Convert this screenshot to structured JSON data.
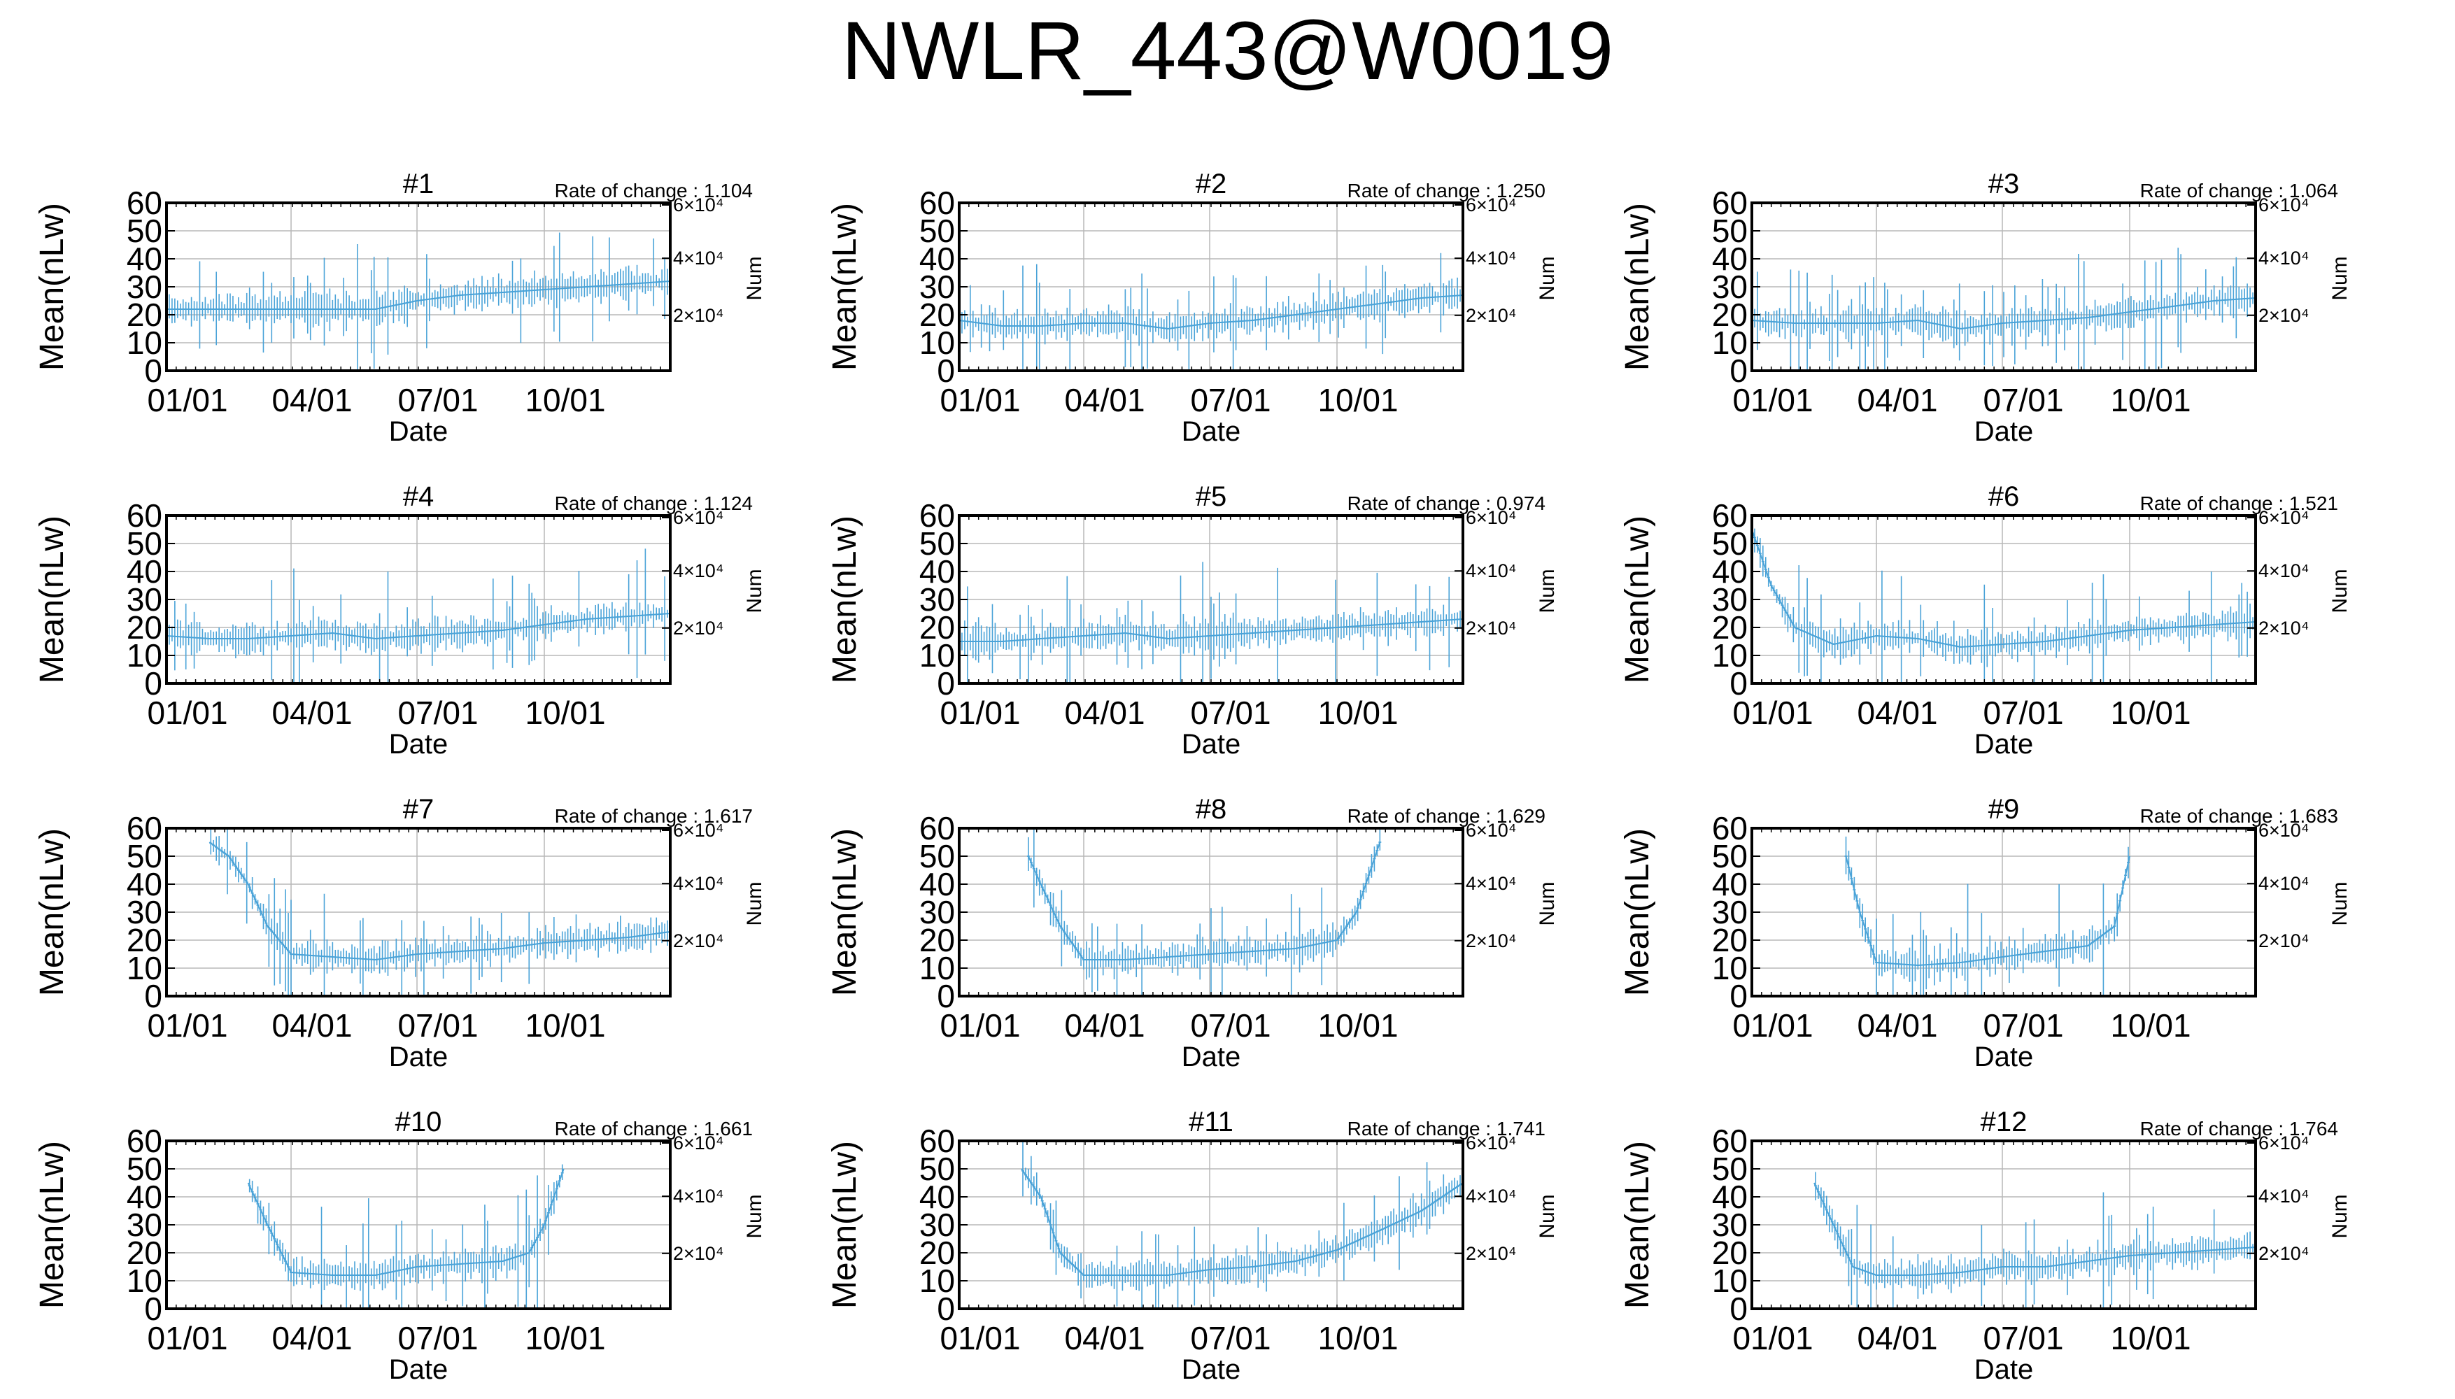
{
  "figure": {
    "title": "NWLR_443@W0019",
    "line_color": "#4aa3d8",
    "panel_ylabel": "Mean(nLw)",
    "panel_xlabel": "Date",
    "panel_y2label": "Num",
    "rate_prefix": "Rate of change : "
  },
  "chart_data": [
    {
      "type": "line",
      "title": "#1",
      "rate_of_change": "1.104",
      "x": [
        "01/01",
        "04/01",
        "07/01",
        "10/01"
      ],
      "ylim": [
        0,
        60
      ],
      "yticks": [
        0,
        10,
        20,
        30,
        40,
        50,
        60
      ],
      "y2ticks": [
        "2×10⁴",
        "4×10⁴",
        "6×10⁴"
      ],
      "xlabel": "Date",
      "ylabel": "Mean(nLw)",
      "y2label": "Num",
      "grid": true,
      "series": [
        {
          "x": [
            "01/01",
            "02/01",
            "03/01",
            "04/01",
            "05/01",
            "06/01",
            "07/01",
            "08/01",
            "09/01",
            "10/01",
            "11/01",
            "12/01",
            "12/31"
          ],
          "values": [
            22,
            22,
            22,
            22,
            22,
            22,
            25,
            27,
            28,
            29,
            30,
            31,
            32
          ]
        }
      ]
    },
    {
      "type": "line",
      "title": "#2",
      "rate_of_change": "1.250",
      "x": [
        "01/01",
        "04/01",
        "07/01",
        "10/01"
      ],
      "ylim": [
        0,
        60
      ],
      "yticks": [
        0,
        10,
        20,
        30,
        40,
        50,
        60
      ],
      "y2ticks": [
        "2×10⁴",
        "4×10⁴",
        "6×10⁴"
      ],
      "xlabel": "Date",
      "ylabel": "Mean(nLw)",
      "y2label": "Num",
      "grid": true,
      "series": [
        {
          "x": [
            "01/01",
            "02/01",
            "03/01",
            "04/01",
            "05/01",
            "06/01",
            "07/01",
            "08/01",
            "09/01",
            "10/01",
            "11/01",
            "12/01",
            "12/31"
          ],
          "values": [
            18,
            16,
            16,
            17,
            17,
            15,
            17,
            18,
            20,
            22,
            24,
            26,
            27
          ]
        }
      ]
    },
    {
      "type": "line",
      "title": "#3",
      "rate_of_change": "1.064",
      "x": [
        "01/01",
        "04/01",
        "07/01",
        "10/01"
      ],
      "ylim": [
        0,
        60
      ],
      "yticks": [
        0,
        10,
        20,
        30,
        40,
        50,
        60
      ],
      "y2ticks": [
        "2×10⁴",
        "4×10⁴",
        "6×10⁴"
      ],
      "xlabel": "Date",
      "ylabel": "Mean(nLw)",
      "y2label": "Num",
      "grid": true,
      "series": [
        {
          "x": [
            "01/01",
            "02/01",
            "03/01",
            "04/01",
            "05/01",
            "06/01",
            "07/01",
            "08/01",
            "09/01",
            "10/01",
            "11/01",
            "12/01",
            "12/31"
          ],
          "values": [
            18,
            17,
            17,
            17,
            18,
            15,
            17,
            18,
            19,
            21,
            23,
            25,
            26
          ]
        }
      ]
    },
    {
      "type": "line",
      "title": "#4",
      "rate_of_change": "1.124",
      "x": [
        "01/01",
        "04/01",
        "07/01",
        "10/01"
      ],
      "ylim": [
        0,
        60
      ],
      "yticks": [
        0,
        10,
        20,
        30,
        40,
        50,
        60
      ],
      "y2ticks": [
        "2×10⁴",
        "4×10⁴",
        "6×10⁴"
      ],
      "xlabel": "Date",
      "ylabel": "Mean(nLw)",
      "y2label": "Num",
      "grid": true,
      "series": [
        {
          "x": [
            "01/01",
            "02/01",
            "03/01",
            "04/01",
            "05/01",
            "06/01",
            "07/01",
            "08/01",
            "09/01",
            "10/01",
            "11/01",
            "12/01",
            "12/31"
          ],
          "values": [
            17,
            16,
            16,
            17,
            18,
            16,
            17,
            18,
            19,
            21,
            23,
            24,
            25
          ]
        }
      ]
    },
    {
      "type": "line",
      "title": "#5",
      "rate_of_change": "0.974",
      "x": [
        "01/01",
        "04/01",
        "07/01",
        "10/01"
      ],
      "ylim": [
        0,
        60
      ],
      "yticks": [
        0,
        10,
        20,
        30,
        40,
        50,
        60
      ],
      "y2ticks": [
        "2×10⁴",
        "4×10⁴",
        "6×10⁴"
      ],
      "xlabel": "Date",
      "ylabel": "Mean(nLw)",
      "y2label": "Num",
      "grid": true,
      "series": [
        {
          "x": [
            "01/01",
            "02/01",
            "03/01",
            "04/01",
            "05/01",
            "06/01",
            "07/01",
            "08/01",
            "09/01",
            "10/01",
            "11/01",
            "12/01",
            "12/31"
          ],
          "values": [
            15,
            15,
            16,
            17,
            18,
            16,
            17,
            18,
            19,
            20,
            21,
            22,
            23
          ]
        }
      ]
    },
    {
      "type": "line",
      "title": "#6",
      "rate_of_change": "1.521",
      "x": [
        "01/01",
        "04/01",
        "07/01",
        "10/01"
      ],
      "ylim": [
        0,
        60
      ],
      "yticks": [
        0,
        10,
        20,
        30,
        40,
        50,
        60
      ],
      "y2ticks": [
        "2×10⁴",
        "4×10⁴",
        "6×10⁴"
      ],
      "xlabel": "Date",
      "ylabel": "Mean(nLw)",
      "y2label": "Num",
      "grid": true,
      "series": [
        {
          "x": [
            "01/01",
            "01/15",
            "02/01",
            "03/01",
            "04/01",
            "05/01",
            "06/01",
            "07/01",
            "08/01",
            "09/01",
            "10/01",
            "11/01",
            "12/01",
            "12/31"
          ],
          "values": [
            55,
            35,
            20,
            14,
            17,
            16,
            13,
            14,
            15,
            17,
            19,
            20,
            21,
            22
          ]
        }
      ]
    },
    {
      "type": "line",
      "title": "#7",
      "rate_of_change": "1.617",
      "x": [
        "01/01",
        "04/01",
        "07/01",
        "10/01"
      ],
      "ylim": [
        0,
        60
      ],
      "yticks": [
        0,
        10,
        20,
        30,
        40,
        50,
        60
      ],
      "y2ticks": [
        "2×10⁴",
        "4×10⁴",
        "6×10⁴"
      ],
      "xlabel": "Date",
      "ylabel": "Mean(nLw)",
      "y2label": "Num",
      "grid": true,
      "series": [
        {
          "x": [
            "02/01",
            "02/15",
            "03/01",
            "03/15",
            "04/01",
            "05/01",
            "06/01",
            "07/01",
            "08/01",
            "09/01",
            "10/01",
            "11/01",
            "12/01",
            "12/31"
          ],
          "values": [
            55,
            50,
            40,
            25,
            15,
            14,
            13,
            15,
            16,
            17,
            19,
            20,
            21,
            23
          ]
        }
      ]
    },
    {
      "type": "line",
      "title": "#8",
      "rate_of_change": "1.629",
      "x": [
        "01/01",
        "04/01",
        "07/01",
        "10/01"
      ],
      "ylim": [
        0,
        60
      ],
      "yticks": [
        0,
        10,
        20,
        30,
        40,
        50,
        60
      ],
      "y2ticks": [
        "2×10⁴",
        "4×10⁴",
        "6×10⁴"
      ],
      "xlabel": "Date",
      "ylabel": "Mean(nLw)",
      "y2label": "Num",
      "grid": true,
      "series": [
        {
          "x": [
            "02/20",
            "03/01",
            "03/15",
            "04/01",
            "05/01",
            "06/01",
            "07/01",
            "08/01",
            "09/01",
            "10/01",
            "10/15",
            "11/01"
          ],
          "values": [
            50,
            40,
            25,
            13,
            13,
            14,
            15,
            16,
            17,
            20,
            30,
            55
          ]
        }
      ]
    },
    {
      "type": "line",
      "title": "#9",
      "rate_of_change": "1.683",
      "x": [
        "01/01",
        "04/01",
        "07/01",
        "10/01"
      ],
      "ylim": [
        0,
        60
      ],
      "yticks": [
        0,
        10,
        20,
        30,
        40,
        50,
        60
      ],
      "y2ticks": [
        "2×10⁴",
        "4×10⁴",
        "6×10⁴"
      ],
      "xlabel": "Date",
      "ylabel": "Mean(nLw)",
      "y2label": "Num",
      "grid": true,
      "series": [
        {
          "x": [
            "03/10",
            "03/20",
            "04/01",
            "05/01",
            "06/01",
            "07/01",
            "08/01",
            "09/01",
            "09/20",
            "10/01"
          ],
          "values": [
            50,
            30,
            12,
            11,
            12,
            14,
            16,
            18,
            25,
            50
          ]
        }
      ]
    },
    {
      "type": "line",
      "title": "#10",
      "rate_of_change": "1.661",
      "x": [
        "01/01",
        "04/01",
        "07/01",
        "10/01"
      ],
      "ylim": [
        0,
        60
      ],
      "yticks": [
        0,
        10,
        20,
        30,
        40,
        50,
        60
      ],
      "y2ticks": [
        "2×10⁴",
        "4×10⁴",
        "6×10⁴"
      ],
      "xlabel": "Date",
      "ylabel": "Mean(nLw)",
      "y2label": "Num",
      "grid": true,
      "series": [
        {
          "x": [
            "03/01",
            "03/15",
            "04/01",
            "05/01",
            "06/01",
            "07/01",
            "08/01",
            "09/01",
            "09/20",
            "10/01",
            "10/15"
          ],
          "values": [
            45,
            30,
            13,
            12,
            12,
            15,
            16,
            17,
            20,
            30,
            50
          ]
        }
      ]
    },
    {
      "type": "line",
      "title": "#11",
      "rate_of_change": "1.741",
      "x": [
        "01/01",
        "04/01",
        "07/01",
        "10/01"
      ],
      "ylim": [
        0,
        60
      ],
      "yticks": [
        0,
        10,
        20,
        30,
        40,
        50,
        60
      ],
      "y2ticks": [
        "2×10⁴",
        "4×10⁴",
        "6×10⁴"
      ],
      "xlabel": "Date",
      "ylabel": "Mean(nLw)",
      "y2label": "Num",
      "grid": true,
      "series": [
        {
          "x": [
            "02/15",
            "03/01",
            "03/15",
            "04/01",
            "05/01",
            "06/01",
            "07/01",
            "08/01",
            "09/01",
            "10/01",
            "11/01",
            "12/01",
            "12/31"
          ],
          "values": [
            50,
            40,
            20,
            12,
            12,
            12,
            14,
            15,
            17,
            21,
            28,
            35,
            45
          ]
        }
      ]
    },
    {
      "type": "line",
      "title": "#12",
      "rate_of_change": "1.764",
      "x": [
        "01/01",
        "04/01",
        "07/01",
        "10/01"
      ],
      "ylim": [
        0,
        60
      ],
      "yticks": [
        0,
        10,
        20,
        30,
        40,
        50,
        60
      ],
      "y2ticks": [
        "2×10⁴",
        "4×10⁴",
        "6×10⁴"
      ],
      "xlabel": "Date",
      "ylabel": "Mean(nLw)",
      "y2label": "Num",
      "grid": true,
      "series": [
        {
          "x": [
            "02/15",
            "03/01",
            "03/15",
            "04/01",
            "05/01",
            "06/01",
            "07/01",
            "08/01",
            "09/01",
            "10/01",
            "11/01",
            "12/01",
            "12/31"
          ],
          "values": [
            45,
            30,
            15,
            12,
            12,
            13,
            15,
            15,
            17,
            19,
            20,
            21,
            22
          ]
        }
      ]
    }
  ]
}
